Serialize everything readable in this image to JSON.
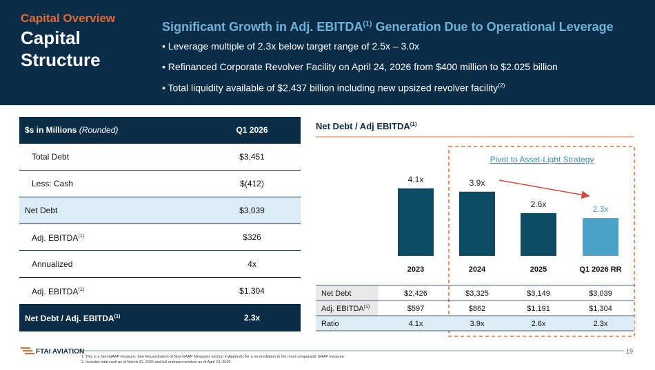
{
  "header": {
    "kicker": "Capital Overview",
    "title_line1": "Capital",
    "title_line2": "Structure",
    "headline": {
      "before": "Significant Growth in Adj. EBITDA",
      "sup": "(1)",
      "after": "Generation Due to Operational Leverage"
    },
    "bullets": [
      {
        "text": "Leverage multiple of 2.3x below target range of 2.5x – 3.0x"
      },
      {
        "text": "Refinanced Corporate Revolver Facility on April 24, 2026 from $400 million to $2.025 billion"
      },
      {
        "text": "Total liquidity available of $2.437 billion including new upsized revolver facility",
        "sup": "(2)"
      }
    ]
  },
  "table": {
    "header": {
      "label": "$s in Millions",
      "note": "(Rounded)",
      "column": "Q1 2026"
    },
    "rows": [
      {
        "label": "Total Debt",
        "value": "$3,451"
      },
      {
        "label": "Less: Cash",
        "value": "$(412)"
      },
      {
        "label": "Net Debt",
        "value": "$3,039"
      },
      {
        "label": "Adj. EBITDA",
        "sup": "(1)",
        "value": "$326"
      },
      {
        "label": "Annualized",
        "value": "4x"
      },
      {
        "label": "Adj. EBITDA",
        "sup": "(1)",
        "value": "$1,304"
      },
      {
        "label": "Net Debt / Adj. EBITDA",
        "sup": "(1)",
        "value": "2.3x"
      }
    ]
  },
  "chart_data": {
    "type": "bar",
    "title": "Net Debt / Adj EBITDA",
    "title_sup": "(1)",
    "annotation": "Pivot to Asset-Light Strategy",
    "categories": [
      "2023",
      "2024",
      "2025",
      "Q1 2026 RR"
    ],
    "values": [
      4.1,
      3.9,
      2.6,
      2.3
    ],
    "value_labels": [
      "4.1x",
      "3.9x",
      "2.6x",
      "2.3x"
    ],
    "colors": [
      "#0d4a63",
      "#0d4a63",
      "#0d4a63",
      "#4ba3c7"
    ]
  },
  "chart_table": {
    "rows": [
      {
        "label": "Net Debt",
        "values": [
          "$2,426",
          "$3,325",
          "$3,149",
          "$3,039"
        ]
      },
      {
        "label": "Adj. EBITDA",
        "sup": "(1)",
        "values": [
          "$597",
          "$862",
          "$1,191",
          "$1,304"
        ]
      },
      {
        "label": "Ratio"
      }
    ]
  },
  "footer": {
    "logo": "FTAI AVIATION",
    "page": "19",
    "notes": [
      "1. This is a Non-GAAP measure. See Reconciliation of Non-GAAP Measures section in Appendix for a reconciliation to the most comparable GAAP measure.",
      "2. Includes total cash as of March 31, 2026 and full undrawn revolver as of April 24, 2026"
    ]
  }
}
